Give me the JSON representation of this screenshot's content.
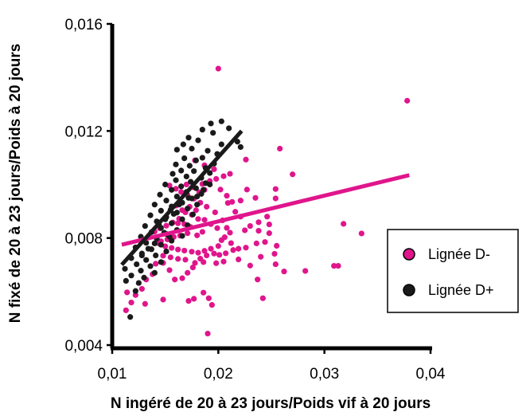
{
  "chart_data": {
    "type": "scatter",
    "xlabel": "N ingéré de 20 à 23 jours/Poids vif à 20 jours",
    "ylabel": "N fixé de 20 à 23 jours/Poids à 20 jours",
    "xlim": [
      0.01,
      0.04
    ],
    "ylim": [
      0.004,
      0.016
    ],
    "x_ticks": [
      {
        "value": 0.01,
        "label": "0,01"
      },
      {
        "value": 0.02,
        "label": "0,02"
      },
      {
        "value": 0.03,
        "label": "0,03"
      },
      {
        "value": 0.04,
        "label": "0,04"
      }
    ],
    "y_ticks": [
      {
        "value": 0.004,
        "label": "0,004"
      },
      {
        "value": 0.008,
        "label": "0,008"
      },
      {
        "value": 0.012,
        "label": "0,012"
      },
      {
        "value": 0.016,
        "label": "0,016"
      }
    ],
    "grid": false,
    "legend_position": "right",
    "series": [
      {
        "name": "Lignée D-",
        "color": "#E0158C",
        "trendline": {
          "x": [
            0.0109,
            0.038
          ],
          "y": [
            0.00775,
            0.01035
          ]
        },
        "points": [
          [
            0.02,
            0.01433
          ],
          [
            0.0378,
            0.01313
          ],
          [
            0.0258,
            0.01134
          ],
          [
            0.0226,
            0.01093
          ],
          [
            0.027,
            0.01038
          ],
          [
            0.0254,
            0.00983
          ],
          [
            0.0227,
            0.00981
          ],
          [
            0.0235,
            0.0095
          ],
          [
            0.0254,
            0.00948
          ],
          [
            0.0221,
            0.0094
          ],
          [
            0.0209,
            0.00931
          ],
          [
            0.0216,
            0.00898
          ],
          [
            0.0221,
            0.0088
          ],
          [
            0.0246,
            0.0088
          ],
          [
            0.0238,
            0.00859
          ],
          [
            0.0248,
            0.00851
          ],
          [
            0.023,
            0.00845
          ],
          [
            0.0208,
            0.00838
          ],
          [
            0.0225,
            0.00829
          ],
          [
            0.0238,
            0.00827
          ],
          [
            0.0248,
            0.00818
          ],
          [
            0.0318,
            0.00853
          ],
          [
            0.0335,
            0.00817
          ],
          [
            0.0244,
            0.00785
          ],
          [
            0.0236,
            0.0078
          ],
          [
            0.0255,
            0.00771
          ],
          [
            0.0226,
            0.00764
          ],
          [
            0.0253,
            0.00741
          ],
          [
            0.024,
            0.0073
          ],
          [
            0.0254,
            0.00702
          ],
          [
            0.023,
            0.00697
          ],
          [
            0.0309,
            0.00696
          ],
          [
            0.0313,
            0.00696
          ],
          [
            0.0282,
            0.00677
          ],
          [
            0.0262,
            0.00675
          ],
          [
            0.0237,
            0.00645
          ],
          [
            0.0242,
            0.00575
          ],
          [
            0.0219,
            0.0072
          ],
          [
            0.0212,
            0.00781
          ],
          [
            0.0203,
            0.00792
          ],
          [
            0.0196,
            0.00742
          ],
          [
            0.0189,
            0.00735
          ],
          [
            0.0183,
            0.00723
          ],
          [
            0.0176,
            0.0069
          ],
          [
            0.0171,
            0.0067
          ],
          [
            0.0166,
            0.0065
          ],
          [
            0.0159,
            0.00645
          ],
          [
            0.0154,
            0.0068
          ],
          [
            0.0148,
            0.00707
          ],
          [
            0.0141,
            0.00704
          ],
          [
            0.0138,
            0.00665
          ],
          [
            0.0132,
            0.00645
          ],
          [
            0.0128,
            0.0061
          ],
          [
            0.0122,
            0.00587
          ],
          [
            0.0118,
            0.00559
          ],
          [
            0.0114,
            0.00597
          ],
          [
            0.0113,
            0.0053
          ],
          [
            0.0131,
            0.00554
          ],
          [
            0.0148,
            0.0057
          ],
          [
            0.0172,
            0.00565
          ],
          [
            0.0177,
            0.00573
          ],
          [
            0.0191,
            0.00575
          ],
          [
            0.0194,
            0.0055
          ],
          [
            0.0186,
            0.00596
          ],
          [
            0.019,
            0.00443
          ],
          [
            0.0199,
            0.00837
          ],
          [
            0.0193,
            0.00852
          ],
          [
            0.0187,
            0.00868
          ],
          [
            0.0181,
            0.00871
          ],
          [
            0.0175,
            0.00887
          ],
          [
            0.0169,
            0.00896
          ],
          [
            0.0163,
            0.00872
          ],
          [
            0.0157,
            0.00858
          ],
          [
            0.0151,
            0.00846
          ],
          [
            0.0145,
            0.00836
          ],
          [
            0.014,
            0.00824
          ],
          [
            0.0135,
            0.00805
          ],
          [
            0.0143,
            0.00781
          ],
          [
            0.015,
            0.00769
          ],
          [
            0.0156,
            0.00763
          ],
          [
            0.0162,
            0.00757
          ],
          [
            0.0168,
            0.00753
          ],
          [
            0.0175,
            0.00749
          ],
          [
            0.0181,
            0.00745
          ],
          [
            0.0187,
            0.00752
          ],
          [
            0.0193,
            0.0076
          ],
          [
            0.02,
            0.0077
          ],
          [
            0.0206,
            0.00803
          ],
          [
            0.0211,
            0.0082
          ],
          [
            0.0204,
            0.00866
          ],
          [
            0.0197,
            0.00896
          ],
          [
            0.0189,
            0.00917
          ],
          [
            0.0183,
            0.00932
          ],
          [
            0.0177,
            0.00947
          ],
          [
            0.0171,
            0.0096
          ],
          [
            0.0165,
            0.00972
          ],
          [
            0.016,
            0.00984
          ],
          [
            0.0154,
            0.00996
          ],
          [
            0.0185,
            0.01002
          ],
          [
            0.0192,
            0.01013
          ],
          [
            0.0198,
            0.01021
          ],
          [
            0.0205,
            0.01031
          ],
          [
            0.0211,
            0.0104
          ],
          [
            0.0196,
            0.01057
          ],
          [
            0.0187,
            0.01072
          ],
          [
            0.0178,
            0.0109
          ],
          [
            0.0202,
            0.00981
          ],
          [
            0.0208,
            0.00958
          ],
          [
            0.0213,
            0.00935
          ],
          [
            0.0171,
            0.00818
          ],
          [
            0.0164,
            0.00809
          ],
          [
            0.0158,
            0.00804
          ],
          [
            0.0152,
            0.00795
          ],
          [
            0.0146,
            0.00788
          ],
          [
            0.018,
            0.0081
          ],
          [
            0.0185,
            0.00823
          ],
          [
            0.0174,
            0.00841
          ],
          [
            0.0168,
            0.00852
          ],
          [
            0.0162,
            0.00855
          ],
          [
            0.0173,
            0.00917
          ],
          [
            0.0179,
            0.00904
          ],
          [
            0.0166,
            0.00904
          ],
          [
            0.016,
            0.00921
          ],
          [
            0.0182,
            0.00971
          ],
          [
            0.0187,
            0.0098
          ],
          [
            0.0176,
            0.0099
          ],
          [
            0.017,
            0.01
          ],
          [
            0.0186,
            0.0071
          ],
          [
            0.0178,
            0.00707
          ],
          [
            0.0169,
            0.00719
          ],
          [
            0.0162,
            0.00722
          ],
          [
            0.0155,
            0.00728
          ],
          [
            0.0148,
            0.00734
          ],
          [
            0.0201,
            0.00737
          ],
          [
            0.0207,
            0.00743
          ],
          [
            0.0214,
            0.00755
          ],
          [
            0.0219,
            0.0076
          ],
          [
            0.0198,
            0.00706
          ],
          [
            0.0205,
            0.00712
          ]
        ]
      },
      {
        "name": "Lignée D+",
        "color": "#1A1A1A",
        "trendline": {
          "x": [
            0.0109,
            0.0222
          ],
          "y": [
            0.007,
            0.012
          ]
        },
        "points": [
          [
            0.0203,
            0.01236
          ],
          [
            0.0193,
            0.01228
          ],
          [
            0.0185,
            0.01205
          ],
          [
            0.021,
            0.0121
          ],
          [
            0.0195,
            0.01193
          ],
          [
            0.0172,
            0.01175
          ],
          [
            0.0181,
            0.01165
          ],
          [
            0.0203,
            0.0115
          ],
          [
            0.0218,
            0.0116
          ],
          [
            0.0221,
            0.0114
          ],
          [
            0.0167,
            0.0115
          ],
          [
            0.0161,
            0.0113
          ],
          [
            0.0175,
            0.01134
          ],
          [
            0.019,
            0.01126
          ],
          [
            0.0199,
            0.01114
          ],
          [
            0.0185,
            0.011
          ],
          [
            0.0168,
            0.01098
          ],
          [
            0.0179,
            0.0109
          ],
          [
            0.0196,
            0.01078
          ],
          [
            0.016,
            0.01075
          ],
          [
            0.0173,
            0.0107
          ],
          [
            0.0188,
            0.01062
          ],
          [
            0.0165,
            0.01052
          ],
          [
            0.0177,
            0.0105
          ],
          [
            0.0192,
            0.01043
          ],
          [
            0.0157,
            0.0104
          ],
          [
            0.017,
            0.0103
          ],
          [
            0.0184,
            0.01025
          ],
          [
            0.016,
            0.01016
          ],
          [
            0.0174,
            0.0101
          ],
          [
            0.0188,
            0.01005
          ],
          [
            0.015,
            0.01
          ],
          [
            0.0165,
            0.00993
          ],
          [
            0.0179,
            0.00986
          ],
          [
            0.0156,
            0.0098
          ],
          [
            0.017,
            0.00972
          ],
          [
            0.0184,
            0.00965
          ],
          [
            0.0145,
            0.00962
          ],
          [
            0.0161,
            0.00955
          ],
          [
            0.0175,
            0.00948
          ],
          [
            0.0151,
            0.0094
          ],
          [
            0.0166,
            0.00932
          ],
          [
            0.018,
            0.00925
          ],
          [
            0.014,
            0.00925
          ],
          [
            0.0156,
            0.00918
          ],
          [
            0.0171,
            0.0091
          ],
          [
            0.0146,
            0.00902
          ],
          [
            0.0161,
            0.00895
          ],
          [
            0.0176,
            0.00888
          ],
          [
            0.0136,
            0.00885
          ],
          [
            0.0151,
            0.00878
          ],
          [
            0.0166,
            0.0087
          ],
          [
            0.0142,
            0.00862
          ],
          [
            0.0156,
            0.00855
          ],
          [
            0.0171,
            0.00848
          ],
          [
            0.0131,
            0.00845
          ],
          [
            0.0146,
            0.00838
          ],
          [
            0.0161,
            0.0083
          ],
          [
            0.0137,
            0.00822
          ],
          [
            0.0151,
            0.00815
          ],
          [
            0.0166,
            0.00808
          ],
          [
            0.0127,
            0.00805
          ],
          [
            0.0142,
            0.00798
          ],
          [
            0.0156,
            0.0079
          ],
          [
            0.0132,
            0.00782
          ],
          [
            0.0146,
            0.00775
          ],
          [
            0.0122,
            0.00765
          ],
          [
            0.0137,
            0.00758
          ],
          [
            0.0151,
            0.0075
          ],
          [
            0.0128,
            0.00742
          ],
          [
            0.0141,
            0.00735
          ],
          [
            0.0118,
            0.00725
          ],
          [
            0.0132,
            0.00718
          ],
          [
            0.0146,
            0.0071
          ],
          [
            0.0123,
            0.00702
          ],
          [
            0.0136,
            0.00695
          ],
          [
            0.0112,
            0.00685
          ],
          [
            0.0127,
            0.00678
          ],
          [
            0.014,
            0.0067
          ],
          [
            0.0118,
            0.0066
          ],
          [
            0.013,
            0.00652
          ],
          [
            0.0113,
            0.0064
          ],
          [
            0.0125,
            0.00632
          ],
          [
            0.0122,
            0.00602
          ],
          [
            0.0117,
            0.00505
          ],
          [
            0.0155,
            0.00905
          ],
          [
            0.0163,
            0.00925
          ],
          [
            0.0172,
            0.0095
          ],
          [
            0.015,
            0.0087
          ],
          [
            0.0158,
            0.0089
          ],
          [
            0.0144,
            0.0085
          ],
          [
            0.018,
            0.00955
          ],
          [
            0.0186,
            0.0098
          ],
          [
            0.0192,
            0.01
          ],
          [
            0.0149,
            0.0082
          ],
          [
            0.014,
            0.0078
          ],
          [
            0.0134,
            0.0076
          ],
          [
            0.0128,
            0.00735
          ],
          [
            0.0154,
            0.00805
          ]
        ]
      }
    ]
  }
}
